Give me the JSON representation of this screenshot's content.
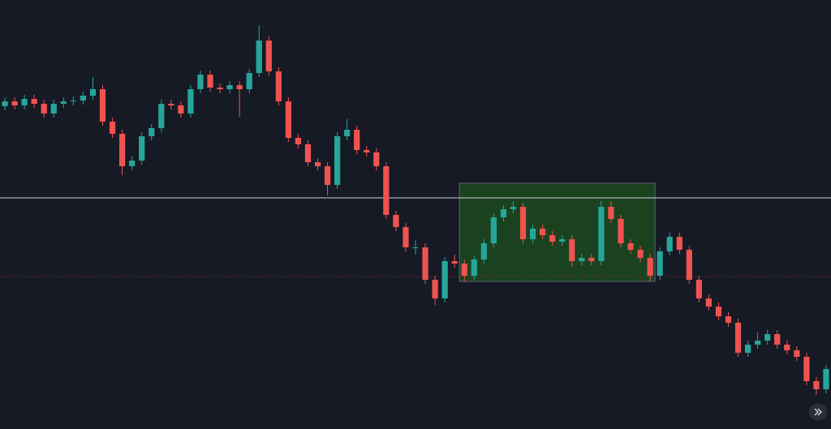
{
  "chart_data": {
    "type": "candlestick",
    "ylim": [
      0,
      529
    ],
    "up_color": "#26a69a",
    "down_color": "#ef5350",
    "open": [
      398,
      404,
      399,
      407,
      401,
      389,
      401,
      404,
      405,
      411,
      419,
      379,
      364,
      324,
      331,
      361,
      371,
      401,
      399,
      389,
      419,
      437,
      421,
      419,
      424,
      419,
      439,
      479,
      441,
      404,
      359,
      351,
      329,
      324,
      301,
      361,
      369,
      344,
      341,
      324,
      264,
      249,
      224,
      224,
      184,
      161,
      207,
      204,
      189,
      209,
      229,
      261,
      271,
      274,
      234,
      247,
      239,
      231,
      234,
      207,
      211,
      207,
      274,
      259,
      229,
      221,
      211,
      189,
      219,
      237,
      221,
      184,
      161,
      151,
      139,
      131,
      94,
      104,
      109,
      117,
      104,
      97,
      89,
      59,
      49
    ],
    "high": [
      409,
      409,
      412,
      412,
      406,
      406,
      409,
      410,
      416,
      434,
      424,
      384,
      369,
      336,
      366,
      376,
      406,
      406,
      404,
      424,
      442,
      442,
      426,
      429,
      429,
      444,
      498,
      484,
      446,
      409,
      364,
      356,
      334,
      329,
      366,
      382,
      374,
      349,
      346,
      329,
      269,
      254,
      233,
      229,
      189,
      212,
      215,
      209,
      214,
      234,
      266,
      276,
      281,
      279,
      252,
      252,
      244,
      239,
      239,
      216,
      216,
      281,
      281,
      264,
      234,
      226,
      216,
      224,
      242,
      242,
      226,
      189,
      166,
      156,
      144,
      136,
      109,
      119,
      122,
      122,
      109,
      102,
      94,
      64,
      79
    ],
    "low": [
      393,
      394,
      394,
      396,
      384,
      384,
      396,
      399,
      400,
      406,
      374,
      359,
      313,
      319,
      326,
      356,
      366,
      394,
      384,
      384,
      414,
      416,
      414,
      414,
      385,
      414,
      434,
      436,
      399,
      354,
      346,
      324,
      319,
      288,
      296,
      356,
      339,
      336,
      319,
      259,
      244,
      219,
      215,
      179,
      153,
      156,
      199,
      182,
      184,
      204,
      224,
      256,
      266,
      229,
      229,
      234,
      226,
      226,
      200,
      202,
      202,
      202,
      254,
      224,
      216,
      206,
      182,
      184,
      214,
      216,
      179,
      156,
      146,
      134,
      126,
      89,
      89,
      99,
      104,
      99,
      92,
      84,
      54,
      42,
      44
    ],
    "close": [
      404,
      399,
      407,
      401,
      389,
      401,
      404,
      405,
      411,
      419,
      379,
      364,
      324,
      331,
      361,
      371,
      401,
      399,
      389,
      419,
      437,
      421,
      419,
      424,
      419,
      439,
      479,
      441,
      404,
      359,
      351,
      329,
      324,
      301,
      361,
      369,
      344,
      341,
      324,
      264,
      249,
      224,
      224,
      184,
      161,
      207,
      204,
      189,
      209,
      229,
      261,
      271,
      274,
      234,
      247,
      239,
      231,
      234,
      207,
      211,
      207,
      274,
      259,
      229,
      221,
      211,
      189,
      219,
      237,
      221,
      184,
      161,
      151,
      139,
      131,
      94,
      104,
      109,
      117,
      104,
      97,
      89,
      59,
      49,
      74
    ],
    "hlines": [
      {
        "value": 285,
        "color": "#d1d4dc",
        "style": "solid"
      },
      {
        "value": 188,
        "color": "#8b2a3a",
        "style": "dotted"
      }
    ],
    "zone": {
      "from_index": 47,
      "to_index": 66,
      "top": 303,
      "bottom": 182,
      "fill": "#1c4a1f",
      "border": "#5d6280"
    }
  }
}
